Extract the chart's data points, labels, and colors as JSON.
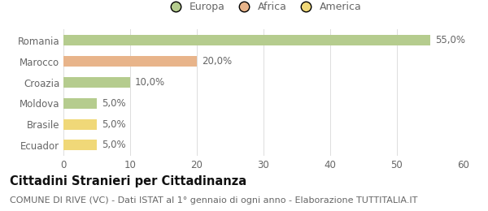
{
  "categories": [
    "Romania",
    "Marocco",
    "Croazia",
    "Moldova",
    "Brasile",
    "Ecuador"
  ],
  "values": [
    55.0,
    20.0,
    10.0,
    5.0,
    5.0,
    5.0
  ],
  "bar_colors": [
    "#b5cc8e",
    "#e8b48a",
    "#b5cc8e",
    "#b5cc8e",
    "#f0d878",
    "#f0d878"
  ],
  "value_labels": [
    "55,0%",
    "20,0%",
    "10,0%",
    "5,0%",
    "5,0%",
    "5,0%"
  ],
  "xlim": [
    0,
    60
  ],
  "xticks": [
    0,
    10,
    20,
    30,
    40,
    50,
    60
  ],
  "legend": [
    {
      "label": "Europa",
      "color": "#b5cc8e"
    },
    {
      "label": "Africa",
      "color": "#e8b48a"
    },
    {
      "label": "America",
      "color": "#f0d878"
    }
  ],
  "title": "Cittadini Stranieri per Cittadinanza",
  "subtitle": "COMUNE DI RIVE (VC) - Dati ISTAT al 1° gennaio di ogni anno - Elaborazione TUTTITALIA.IT",
  "background_color": "#ffffff",
  "bar_height": 0.5,
  "label_fontsize": 8.5,
  "ytick_fontsize": 8.5,
  "xtick_fontsize": 8.5,
  "title_fontsize": 10.5,
  "subtitle_fontsize": 8.0,
  "legend_fontsize": 9
}
